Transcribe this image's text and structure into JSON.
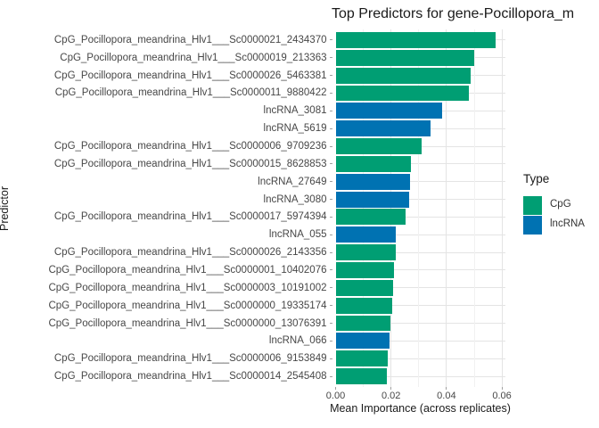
{
  "title": "Top Predictors for gene-Pocillopora_m",
  "colors": {
    "cpg_green": "#009E73",
    "lncrna_blue": "#0072B2",
    "grid_major": "#e4e4e4",
    "grid_minor": "#f1f1f1",
    "axis_text": "#474747",
    "title_text": "#1a1a1a"
  },
  "chart_data": {
    "type": "bar",
    "orientation": "horizontal",
    "title": "Top Predictors for gene-Pocillopora_m",
    "xlabel": "Mean Importance (across replicates)",
    "ylabel": "Predictor",
    "xlim": [
      0,
      0.061
    ],
    "x_ticks": [
      0,
      0.02,
      0.04,
      0.06
    ],
    "x_tick_labels": [
      "0.00",
      "0.02",
      "0.04",
      "0.06"
    ],
    "x_minor_gridlines": [
      0.01,
      0.03,
      0.05
    ],
    "grid": "on",
    "legend": {
      "title": "Type",
      "position": "right",
      "entries": [
        {
          "label": "CpG",
          "color": "#009E73"
        },
        {
          "label": "lncRNA",
          "color": "#0072B2"
        }
      ]
    },
    "bars": [
      {
        "label": "CpG_Pocillopora_meandrina_Hlv1___Sc0000021_2434370",
        "type": "CpG",
        "value": 0.0577
      },
      {
        "label": "CpG_Pocillopora_meandrina_Hlv1___Sc0000019_213363",
        "type": "CpG",
        "value": 0.0499
      },
      {
        "label": "CpG_Pocillopora_meandrina_Hlv1___Sc0000026_5463381",
        "type": "CpG",
        "value": 0.0487
      },
      {
        "label": "CpG_Pocillopora_meandrina_Hlv1___Sc0000011_9880422",
        "type": "CpG",
        "value": 0.048
      },
      {
        "label": "lncRNA_3081",
        "type": "lncRNA",
        "value": 0.0384
      },
      {
        "label": "lncRNA_5619",
        "type": "lncRNA",
        "value": 0.0341
      },
      {
        "label": "CpG_Pocillopora_meandrina_Hlv1___Sc0000006_9709236",
        "type": "CpG",
        "value": 0.031
      },
      {
        "label": "CpG_Pocillopora_meandrina_Hlv1___Sc0000015_8628853",
        "type": "CpG",
        "value": 0.0273
      },
      {
        "label": "lncRNA_27649",
        "type": "lncRNA",
        "value": 0.0267
      },
      {
        "label": "lncRNA_3080",
        "type": "lncRNA",
        "value": 0.0266
      },
      {
        "label": "CpG_Pocillopora_meandrina_Hlv1___Sc0000017_5974394",
        "type": "CpG",
        "value": 0.0252
      },
      {
        "label": "lncRNA_055",
        "type": "lncRNA",
        "value": 0.0218
      },
      {
        "label": "CpG_Pocillopora_meandrina_Hlv1___Sc0000026_2143356",
        "type": "CpG",
        "value": 0.0216
      },
      {
        "label": "CpG_Pocillopora_meandrina_Hlv1___Sc0000001_10402076",
        "type": "CpG",
        "value": 0.0212
      },
      {
        "label": "CpG_Pocillopora_meandrina_Hlv1___Sc0000003_10191002",
        "type": "CpG",
        "value": 0.0209
      },
      {
        "label": "CpG_Pocillopora_meandrina_Hlv1___Sc0000000_19335174",
        "type": "CpG",
        "value": 0.0204
      },
      {
        "label": "CpG_Pocillopora_meandrina_Hlv1___Sc0000000_13076391",
        "type": "CpG",
        "value": 0.0198
      },
      {
        "label": "lncRNA_066",
        "type": "lncRNA",
        "value": 0.0196
      },
      {
        "label": "CpG_Pocillopora_meandrina_Hlv1___Sc0000006_9153849",
        "type": "CpG",
        "value": 0.0188
      },
      {
        "label": "CpG_Pocillopora_meandrina_Hlv1___Sc0000014_2545408",
        "type": "CpG",
        "value": 0.0185
      }
    ]
  }
}
